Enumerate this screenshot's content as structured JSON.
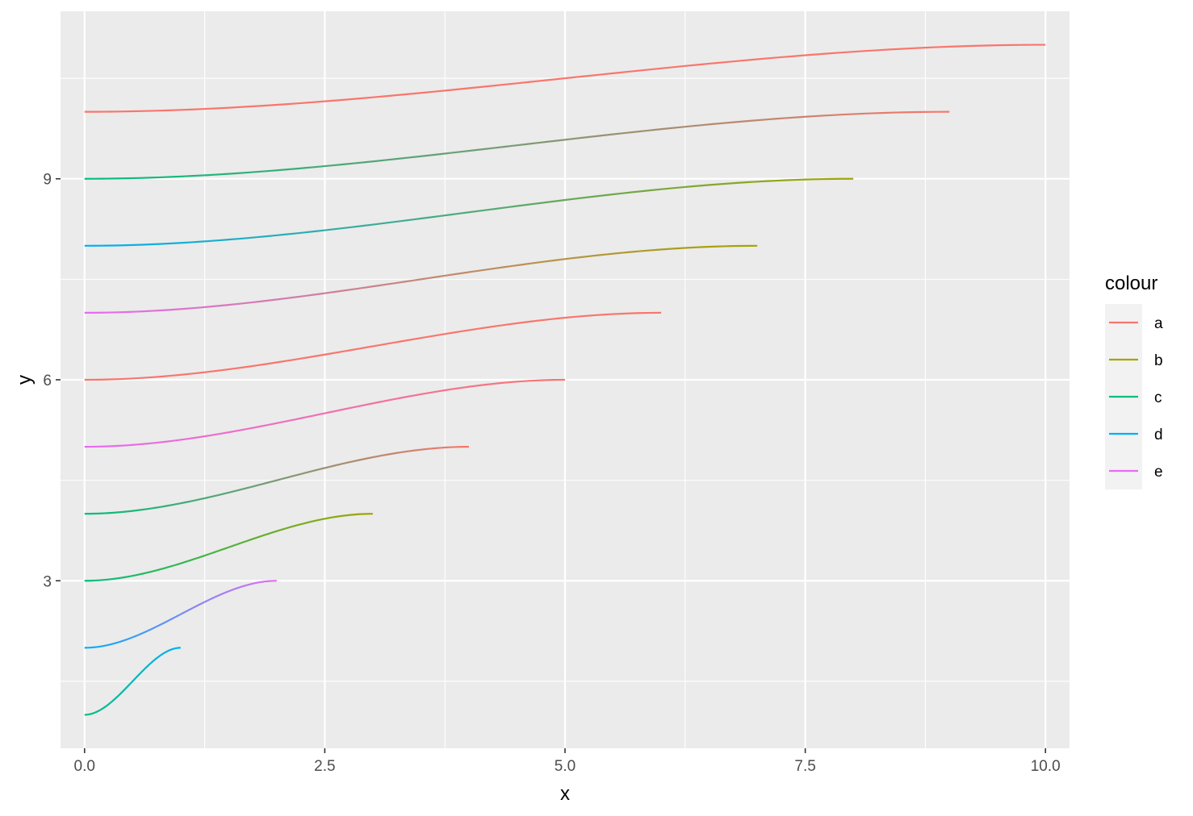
{
  "chart_data": {
    "type": "line",
    "title": "",
    "xlabel": "x",
    "ylabel": "y",
    "xlim": [
      -0.25,
      10.25
    ],
    "ylim": [
      0.5,
      11.5
    ],
    "x_ticks": [
      {
        "value": 0,
        "label": "0.0"
      },
      {
        "value": 2.5,
        "label": "2.5"
      },
      {
        "value": 5,
        "label": "5.0"
      },
      {
        "value": 7.5,
        "label": "7.5"
      },
      {
        "value": 10,
        "label": "10.0"
      }
    ],
    "y_ticks": [
      {
        "value": 3,
        "label": "3"
      },
      {
        "value": 6,
        "label": "6"
      },
      {
        "value": 9,
        "label": "9"
      }
    ],
    "grid": true,
    "panel_background": "#ebebeb",
    "curve_shape": "sigmoid",
    "legend": {
      "title": "colour",
      "position": "right",
      "entries": [
        {
          "key": "a",
          "label": "a",
          "color": "#F8766D"
        },
        {
          "key": "b",
          "label": "b",
          "color": "#A3A500"
        },
        {
          "key": "c",
          "label": "c",
          "color": "#00BF7D"
        },
        {
          "key": "d",
          "label": "d",
          "color": "#00B0F6"
        },
        {
          "key": "e",
          "label": "e",
          "color": "#E76BF3"
        }
      ]
    },
    "series": [
      {
        "x_start": 0,
        "x_end": 1,
        "y_start": 1,
        "y_end": 2,
        "colour_start": "c",
        "colour_end": "d"
      },
      {
        "x_start": 0,
        "x_end": 2,
        "y_start": 2,
        "y_end": 3,
        "colour_start": "d",
        "colour_end": "e"
      },
      {
        "x_start": 0,
        "x_end": 3,
        "y_start": 3,
        "y_end": 4,
        "colour_start": "c",
        "colour_end": "b"
      },
      {
        "x_start": 0,
        "x_end": 4,
        "y_start": 4,
        "y_end": 5,
        "colour_start": "c",
        "colour_end": "a"
      },
      {
        "x_start": 0,
        "x_end": 5,
        "y_start": 5,
        "y_end": 6,
        "colour_start": "e",
        "colour_end": "a"
      },
      {
        "x_start": 0,
        "x_end": 6,
        "y_start": 6,
        "y_end": 7,
        "colour_start": "a",
        "colour_end": "a"
      },
      {
        "x_start": 0,
        "x_end": 7,
        "y_start": 7,
        "y_end": 8,
        "colour_start": "e",
        "colour_end": "b"
      },
      {
        "x_start": 0,
        "x_end": 8,
        "y_start": 8,
        "y_end": 9,
        "colour_start": "d",
        "colour_end": "b"
      },
      {
        "x_start": 0,
        "x_end": 9,
        "y_start": 9,
        "y_end": 10,
        "colour_start": "c",
        "colour_end": "a"
      },
      {
        "x_start": 0,
        "x_end": 10,
        "y_start": 10,
        "y_end": 11,
        "colour_start": "a",
        "colour_end": "a"
      }
    ]
  }
}
